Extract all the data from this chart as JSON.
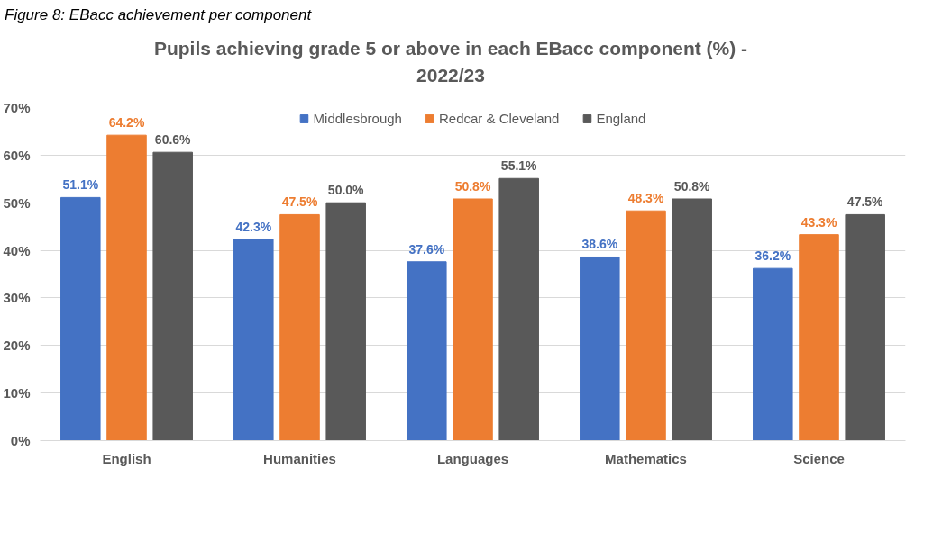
{
  "chart_data": {
    "type": "bar",
    "title": "Pupils achieving grade 5 or above in each EBacc component (%) - 2022/23",
    "annotations": [
      "Figure 8: EBacc achievement per component"
    ],
    "categories": [
      "English",
      "Humanities",
      "Languages",
      "Mathematics",
      "Science"
    ],
    "series": [
      {
        "name": "Middlesbrough",
        "color": "#4472c4",
        "values": [
          51.1,
          42.3,
          37.6,
          38.6,
          36.2
        ],
        "value_labels": [
          "51.1%",
          "42.3%",
          "37.6%",
          "38.6%",
          "36.2%"
        ]
      },
      {
        "name": "Redcar & Cleveland",
        "color": "#ed7d31",
        "values": [
          64.2,
          47.5,
          50.8,
          48.3,
          43.3
        ],
        "value_labels": [
          "64.2%",
          "47.5%",
          "50.8%",
          "48.3%",
          "43.3%"
        ]
      },
      {
        "name": "England",
        "color": "#595959",
        "values": [
          60.6,
          50.0,
          55.1,
          50.8,
          47.5
        ],
        "value_labels": [
          "60.6%",
          "50.0%",
          "55.1%",
          "50.8%",
          "47.5%"
        ]
      }
    ],
    "ylim": [
      0,
      70
    ],
    "yticks": [
      {
        "value": 0,
        "label": "0%"
      },
      {
        "value": 10,
        "label": "10%"
      },
      {
        "value": 20,
        "label": "20%"
      },
      {
        "value": 30,
        "label": "30%"
      },
      {
        "value": 40,
        "label": "40%"
      },
      {
        "value": 50,
        "label": "50%"
      },
      {
        "value": 60,
        "label": "60%"
      },
      {
        "value": 70,
        "label": "70%"
      }
    ],
    "grid": "y",
    "legend": "top"
  }
}
